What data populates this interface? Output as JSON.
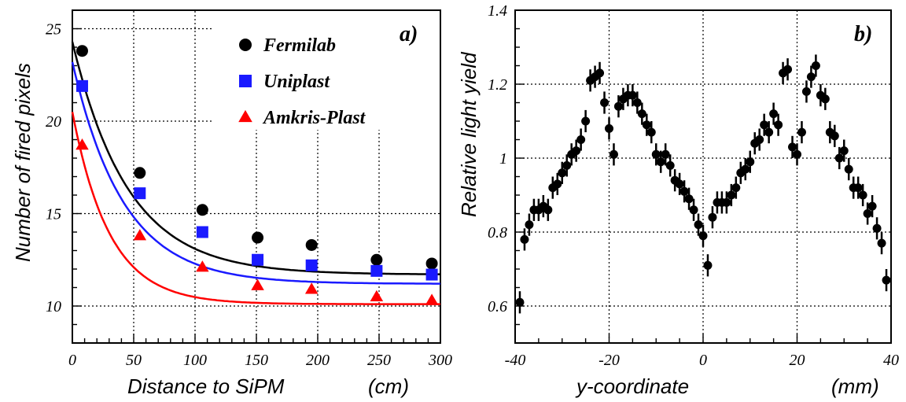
{
  "chart_data": [
    {
      "type": "scatter",
      "panel_label": "a)",
      "xlabel": "Distance to SiPM",
      "xunit": "(cm)",
      "ylabel": "Number of fired pixels",
      "xlim": [
        0,
        300
      ],
      "ylim": [
        8,
        26
      ],
      "xticks": [
        0,
        50,
        100,
        150,
        200,
        250,
        300
      ],
      "yticks": [
        10,
        15,
        20,
        25
      ],
      "grid": true,
      "legend_position": "top-right",
      "series": [
        {
          "name": "Fermilab",
          "marker": "circle",
          "color": "#000000",
          "x": [
            8,
            55,
            106,
            151,
            195,
            248,
            293
          ],
          "y": [
            23.8,
            17.2,
            15.2,
            13.7,
            13.3,
            12.5,
            12.3
          ],
          "fit": {
            "a": 11.7,
            "b": 12.6,
            "c": 0.022
          }
        },
        {
          "name": "Uniplast",
          "marker": "square",
          "color": "#1a1aff",
          "x": [
            8,
            55,
            106,
            151,
            195,
            248,
            293
          ],
          "y": [
            21.9,
            16.1,
            14.0,
            12.5,
            12.2,
            11.9,
            11.7
          ],
          "fit": {
            "a": 11.2,
            "b": 12.0,
            "c": 0.024
          }
        },
        {
          "name": "Amkris-Plast",
          "marker": "triangle",
          "color": "#ff0000",
          "x": [
            8,
            55,
            106,
            151,
            195,
            248,
            293
          ],
          "y": [
            18.7,
            13.8,
            12.1,
            11.1,
            10.9,
            10.5,
            10.3
          ],
          "fit": {
            "a": 10.1,
            "b": 10.4,
            "c": 0.033
          }
        }
      ]
    },
    {
      "type": "scatter",
      "panel_label": "b)",
      "xlabel": "y-coordinate",
      "xunit": "(mm)",
      "ylabel": "Relative light yield",
      "xlim": [
        -40,
        40
      ],
      "ylim": [
        0.5,
        1.4
      ],
      "xticks": [
        -40,
        -20,
        0,
        20,
        40
      ],
      "yticks": [
        0.6,
        0.8,
        1,
        1.2,
        1.4
      ],
      "ytick_labels": [
        "0.6",
        "0.8",
        "1",
        "1.2",
        "1.4"
      ],
      "grid": true,
      "error_bars": true,
      "series": [
        {
          "marker": "circle",
          "color": "#000000",
          "x": [
            -39,
            -38,
            -37,
            -36,
            -35,
            -34,
            -33,
            -32,
            -31,
            -30,
            -29,
            -28,
            -27,
            -26,
            -25,
            -24,
            -23,
            -22,
            -21,
            -20,
            -19,
            -18,
            -17,
            -16,
            -15,
            -14,
            -13,
            -12,
            -11,
            -10,
            -9,
            -8,
            -7,
            -6,
            -5,
            -4,
            -3,
            -2,
            -1,
            0,
            1,
            2,
            3,
            4,
            5,
            6,
            7,
            8,
            9,
            10,
            11,
            12,
            13,
            14,
            15,
            16,
            17,
            18,
            19,
            20,
            21,
            22,
            23,
            24,
            25,
            26,
            27,
            28,
            29,
            30,
            31,
            32,
            33,
            34,
            35,
            36,
            37,
            38,
            39
          ],
          "y": [
            0.61,
            0.78,
            0.82,
            0.86,
            0.86,
            0.87,
            0.86,
            0.92,
            0.93,
            0.96,
            0.98,
            1.01,
            1.02,
            1.05,
            1.1,
            1.21,
            1.22,
            1.23,
            1.15,
            1.08,
            1.01,
            1.14,
            1.16,
            1.17,
            1.17,
            1.15,
            1.12,
            1.09,
            1.07,
            1.01,
            0.99,
            1.01,
            0.98,
            0.94,
            0.93,
            0.91,
            0.89,
            0.86,
            0.82,
            0.79,
            0.71,
            0.84,
            0.88,
            0.88,
            0.88,
            0.9,
            0.92,
            0.96,
            0.97,
            0.99,
            1.04,
            1.05,
            1.09,
            1.07,
            1.12,
            1.09,
            1.23,
            1.24,
            1.03,
            1.01,
            1.07,
            1.18,
            1.22,
            1.25,
            1.17,
            1.16,
            1.07,
            1.06,
            1.0,
            1.02,
            0.97,
            0.92,
            0.92,
            0.9,
            0.85,
            0.87,
            0.81,
            0.77,
            0.67
          ],
          "err": 0.03
        }
      ]
    }
  ]
}
